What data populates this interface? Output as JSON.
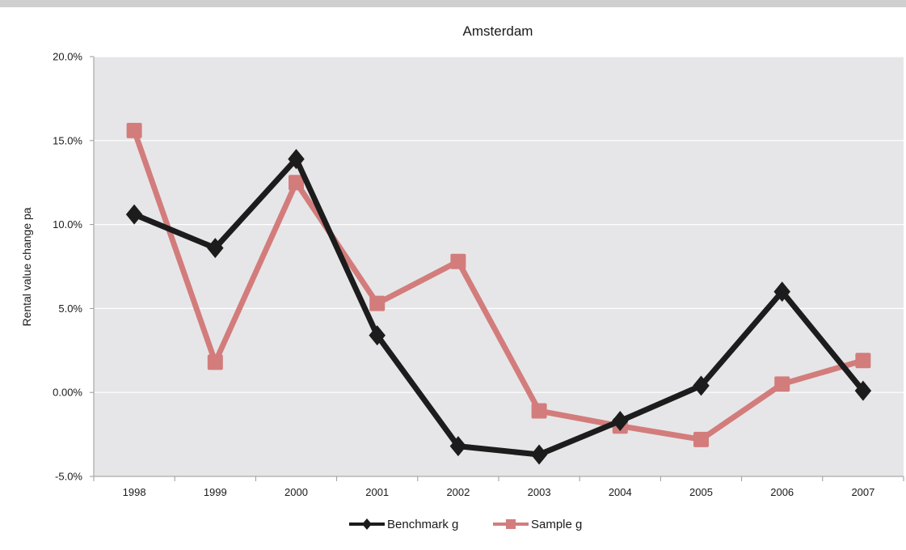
{
  "chart_data": {
    "type": "line",
    "title": "Amsterdam",
    "xlabel": "",
    "ylabel": "Rental value change pa",
    "categories": [
      "1998",
      "1999",
      "2000",
      "2001",
      "2002",
      "2003",
      "2004",
      "2005",
      "2006",
      "2007"
    ],
    "ylim": [
      -5.0,
      20.0
    ],
    "yticks": [
      {
        "value": 20,
        "label": "20.0%"
      },
      {
        "value": 15,
        "label": "15.0%"
      },
      {
        "value": 10,
        "label": "10.0%"
      },
      {
        "value": 5,
        "label": "5.0%"
      },
      {
        "value": 0,
        "label": "0.00%"
      },
      {
        "value": -5,
        "label": "-5.0%"
      }
    ],
    "grid": true,
    "legend_position": "bottom",
    "series": [
      {
        "name": "Benchmark g",
        "color": "#1c1c1c",
        "marker": "diamond",
        "values": [
          10.6,
          8.6,
          13.9,
          3.4,
          -3.2,
          -3.7,
          -1.7,
          0.4,
          6.0,
          0.1
        ]
      },
      {
        "name": "Sample g",
        "color": "#d37c7c",
        "marker": "square",
        "values": [
          15.6,
          1.8,
          12.5,
          5.3,
          7.8,
          -1.1,
          -2.0,
          -2.8,
          0.5,
          1.9
        ]
      }
    ]
  },
  "colors": {
    "plot_background": "#e6e6e8",
    "frame": "#cfcfcf",
    "gridline": "#ffffff"
  }
}
